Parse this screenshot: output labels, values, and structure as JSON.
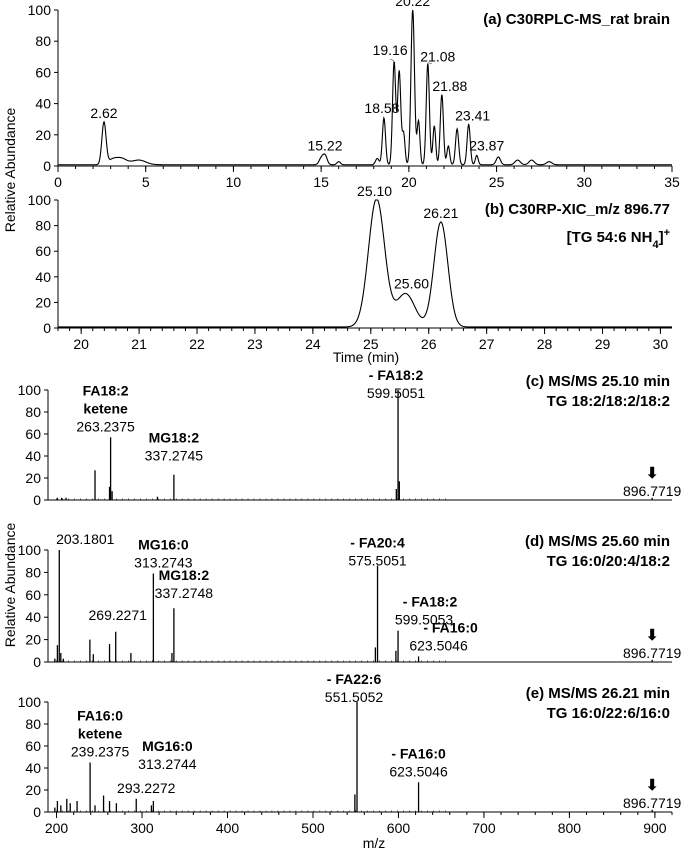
{
  "figure": {
    "ylabel_top": "Relative Abundance",
    "ylabel_bottom": "Relative Abundance",
    "xlabel_time": "Time (min)",
    "xlabel_mz": "m/z",
    "arrow_glyph": "⬇"
  },
  "chart_data": [
    {
      "id": "a",
      "type": "line",
      "title": "(a) C30RPLC-MS_rat brain",
      "xlim": [
        0,
        35
      ],
      "ylim": [
        0,
        100
      ],
      "xticks": [
        0,
        5,
        10,
        15,
        20,
        25,
        30,
        35
      ],
      "yticks": [
        0,
        20,
        40,
        60,
        80,
        100
      ],
      "xlabel": "",
      "ylabel": "Relative Abundance",
      "peaks": [
        {
          "rt": 2.62,
          "height": 27,
          "width": 0.12,
          "label": "2.62"
        },
        {
          "rt": 3.1,
          "height": 3,
          "width": 0.25,
          "label": ""
        },
        {
          "rt": 3.6,
          "height": 4,
          "width": 0.3,
          "label": ""
        },
        {
          "rt": 4.6,
          "height": 3,
          "width": 0.4,
          "label": ""
        },
        {
          "rt": 15.0,
          "height": 4,
          "width": 0.12,
          "label": ""
        },
        {
          "rt": 15.22,
          "height": 6,
          "width": 0.12,
          "label": "15.22"
        },
        {
          "rt": 16.0,
          "height": 2,
          "width": 0.1,
          "label": ""
        },
        {
          "rt": 18.2,
          "height": 4,
          "width": 0.1,
          "label": ""
        },
        {
          "rt": 18.58,
          "height": 30,
          "width": 0.09,
          "label": "18.58"
        },
        {
          "rt": 19.16,
          "height": 66,
          "width": 0.09,
          "label": "19.16"
        },
        {
          "rt": 19.45,
          "height": 60,
          "width": 0.09,
          "label": ""
        },
        {
          "rt": 19.7,
          "height": 20,
          "width": 0.08,
          "label": ""
        },
        {
          "rt": 20.22,
          "height": 100,
          "width": 0.1,
          "label": "20.22"
        },
        {
          "rt": 20.55,
          "height": 28,
          "width": 0.08,
          "label": ""
        },
        {
          "rt": 21.08,
          "height": 65,
          "width": 0.09,
          "label": "21.08"
        },
        {
          "rt": 21.45,
          "height": 25,
          "width": 0.08,
          "label": ""
        },
        {
          "rt": 21.88,
          "height": 45,
          "width": 0.09,
          "label": "21.88"
        },
        {
          "rt": 22.25,
          "height": 12,
          "width": 0.08,
          "label": ""
        },
        {
          "rt": 22.75,
          "height": 23,
          "width": 0.09,
          "label": ""
        },
        {
          "rt": 23.41,
          "height": 26,
          "width": 0.09,
          "label": "23.41"
        },
        {
          "rt": 23.87,
          "height": 6,
          "width": 0.08,
          "label": "23.87"
        },
        {
          "rt": 25.1,
          "height": 5,
          "width": 0.12,
          "label": ""
        },
        {
          "rt": 26.2,
          "height": 3,
          "width": 0.15,
          "label": ""
        },
        {
          "rt": 27.0,
          "height": 3,
          "width": 0.15,
          "label": ""
        },
        {
          "rt": 28.0,
          "height": 2,
          "width": 0.15,
          "label": ""
        }
      ]
    },
    {
      "id": "b",
      "type": "line",
      "title": "(b) C30RP-XIC_m/z 896.77",
      "subtitle": "[TG 54:6 NH4]+",
      "xlim": [
        19.6,
        30.2
      ],
      "ylim": [
        0,
        100
      ],
      "xticks": [
        20,
        21,
        22,
        23,
        24,
        25,
        26,
        27,
        28,
        29,
        30
      ],
      "yticks": [
        0,
        20,
        40,
        60,
        80,
        100
      ],
      "xlabel": "Time (min)",
      "ylabel": "Relative Abundance",
      "peaks": [
        {
          "rt": 25.1,
          "height": 100,
          "width": 0.14,
          "label": "25.10"
        },
        {
          "rt": 25.6,
          "height": 26,
          "width": 0.16,
          "label": "25.60"
        },
        {
          "rt": 26.21,
          "height": 82,
          "width": 0.12,
          "label": "26.21"
        }
      ]
    },
    {
      "id": "c",
      "type": "bar",
      "title": "(c) MS/MS 25.10 min",
      "subtitle": "TG 18:2/18:2/18:2",
      "xlim": [
        190,
        920
      ],
      "ylim": [
        0,
        100
      ],
      "yticks": [
        0,
        20,
        40,
        60,
        80,
        100
      ],
      "ylabel": "Relative Abundance",
      "peaks": [
        {
          "mz": 201,
          "intensity": 2
        },
        {
          "mz": 206,
          "intensity": 2
        },
        {
          "mz": 211,
          "intensity": 2
        },
        {
          "mz": 245,
          "intensity": 27
        },
        {
          "mz": 262,
          "intensity": 12
        },
        {
          "mz": 263.2375,
          "intensity": 57
        },
        {
          "mz": 265,
          "intensity": 8
        },
        {
          "mz": 337.2745,
          "intensity": 23
        },
        {
          "mz": 318,
          "intensity": 3
        },
        {
          "mz": 597.5,
          "intensity": 10
        },
        {
          "mz": 599.5051,
          "intensity": 100
        },
        {
          "mz": 601,
          "intensity": 17
        },
        {
          "mz": 896.7719,
          "intensity": 2
        }
      ],
      "labels": [
        {
          "mz": 263.2375,
          "name": "FA18:2",
          "name2": "ketene",
          "value": "263.2375"
        },
        {
          "mz": 337.2745,
          "name": "MG18:2",
          "name2": "",
          "value": "337.2745"
        },
        {
          "mz": 599.5051,
          "name": "- FA18:2",
          "name2": "",
          "value": "599.5051"
        },
        {
          "mz": 896.7719,
          "name": "",
          "name2": "",
          "value": "896.7719"
        }
      ]
    },
    {
      "id": "d",
      "type": "bar",
      "title": "(d) MS/MS 25.60 min",
      "subtitle": "TG 16:0/20:4/18:2",
      "xlim": [
        190,
        920
      ],
      "ylim": [
        0,
        100
      ],
      "yticks": [
        0,
        20,
        40,
        60,
        80,
        100
      ],
      "ylabel": "Relative Abundance",
      "peaks": [
        {
          "mz": 198,
          "intensity": 3
        },
        {
          "mz": 201,
          "intensity": 15
        },
        {
          "mz": 203.1801,
          "intensity": 100
        },
        {
          "mz": 205,
          "intensity": 8
        },
        {
          "mz": 208,
          "intensity": 3
        },
        {
          "mz": 239,
          "intensity": 20
        },
        {
          "mz": 243,
          "intensity": 7
        },
        {
          "mz": 262,
          "intensity": 16
        },
        {
          "mz": 269.2271,
          "intensity": 27
        },
        {
          "mz": 287,
          "intensity": 8
        },
        {
          "mz": 313.2743,
          "intensity": 79
        },
        {
          "mz": 335,
          "intensity": 8
        },
        {
          "mz": 337.2748,
          "intensity": 48
        },
        {
          "mz": 573,
          "intensity": 13
        },
        {
          "mz": 575.5051,
          "intensity": 86
        },
        {
          "mz": 597,
          "intensity": 10
        },
        {
          "mz": 599.5053,
          "intensity": 28
        },
        {
          "mz": 623.5046,
          "intensity": 5
        },
        {
          "mz": 896.7719,
          "intensity": 2
        }
      ],
      "labels": [
        {
          "mz": 203.1801,
          "name": "",
          "name2": "",
          "value": "203.1801"
        },
        {
          "mz": 269.2271,
          "name": "",
          "name2": "",
          "value": "269.2271"
        },
        {
          "mz": 313.2743,
          "name": "MG16:0",
          "name2": "",
          "value": "313.2743"
        },
        {
          "mz": 337.2748,
          "name": "MG18:2",
          "name2": "",
          "value": "337.2748"
        },
        {
          "mz": 575.5051,
          "name": "- FA20:4",
          "name2": "",
          "value": "575.5051"
        },
        {
          "mz": 599.5053,
          "name": "- FA18:2",
          "name2": "",
          "value": "599.5053"
        },
        {
          "mz": 623.5046,
          "name": "- FA16:0",
          "name2": "",
          "value": "623.5046"
        },
        {
          "mz": 896.7719,
          "name": "",
          "name2": "",
          "value": "896.7719"
        }
      ]
    },
    {
      "id": "e",
      "type": "bar",
      "title": "(e) MS/MS 26.21 min",
      "subtitle": "TG 16:0/22:6/16:0",
      "xlim": [
        190,
        920
      ],
      "xticks": [
        200,
        300,
        400,
        500,
        600,
        700,
        800,
        900
      ],
      "ylim": [
        0,
        100
      ],
      "yticks": [
        0,
        20,
        40,
        60,
        80,
        100
      ],
      "xlabel": "m/z",
      "ylabel": "",
      "peaks": [
        {
          "mz": 198,
          "intensity": 4
        },
        {
          "mz": 201,
          "intensity": 10
        },
        {
          "mz": 205,
          "intensity": 6
        },
        {
          "mz": 212,
          "intensity": 12
        },
        {
          "mz": 216,
          "intensity": 8
        },
        {
          "mz": 224,
          "intensity": 10
        },
        {
          "mz": 239.2375,
          "intensity": 45
        },
        {
          "mz": 245,
          "intensity": 6
        },
        {
          "mz": 255,
          "intensity": 15
        },
        {
          "mz": 262,
          "intensity": 10
        },
        {
          "mz": 270,
          "intensity": 8
        },
        {
          "mz": 293.2272,
          "intensity": 12
        },
        {
          "mz": 311,
          "intensity": 6
        },
        {
          "mz": 313.2744,
          "intensity": 10
        },
        {
          "mz": 549,
          "intensity": 16
        },
        {
          "mz": 551.5052,
          "intensity": 100
        },
        {
          "mz": 623.5046,
          "intensity": 27
        },
        {
          "mz": 896.7719,
          "intensity": 2
        }
      ],
      "labels": [
        {
          "mz": 239.2375,
          "name": "FA16:0",
          "name2": "ketene",
          "value": "239.2375"
        },
        {
          "mz": 293.2272,
          "name": "",
          "name2": "",
          "value": "293.2272"
        },
        {
          "mz": 313.2744,
          "name": "MG16:0",
          "name2": "",
          "value": "313.2744"
        },
        {
          "mz": 551.5052,
          "name": "- FA22:6",
          "name2": "",
          "value": "551.5052"
        },
        {
          "mz": 623.5046,
          "name": "- FA16:0",
          "name2": "",
          "value": "623.5046"
        },
        {
          "mz": 896.7719,
          "name": "",
          "name2": "",
          "value": "896.7719"
        }
      ]
    }
  ]
}
